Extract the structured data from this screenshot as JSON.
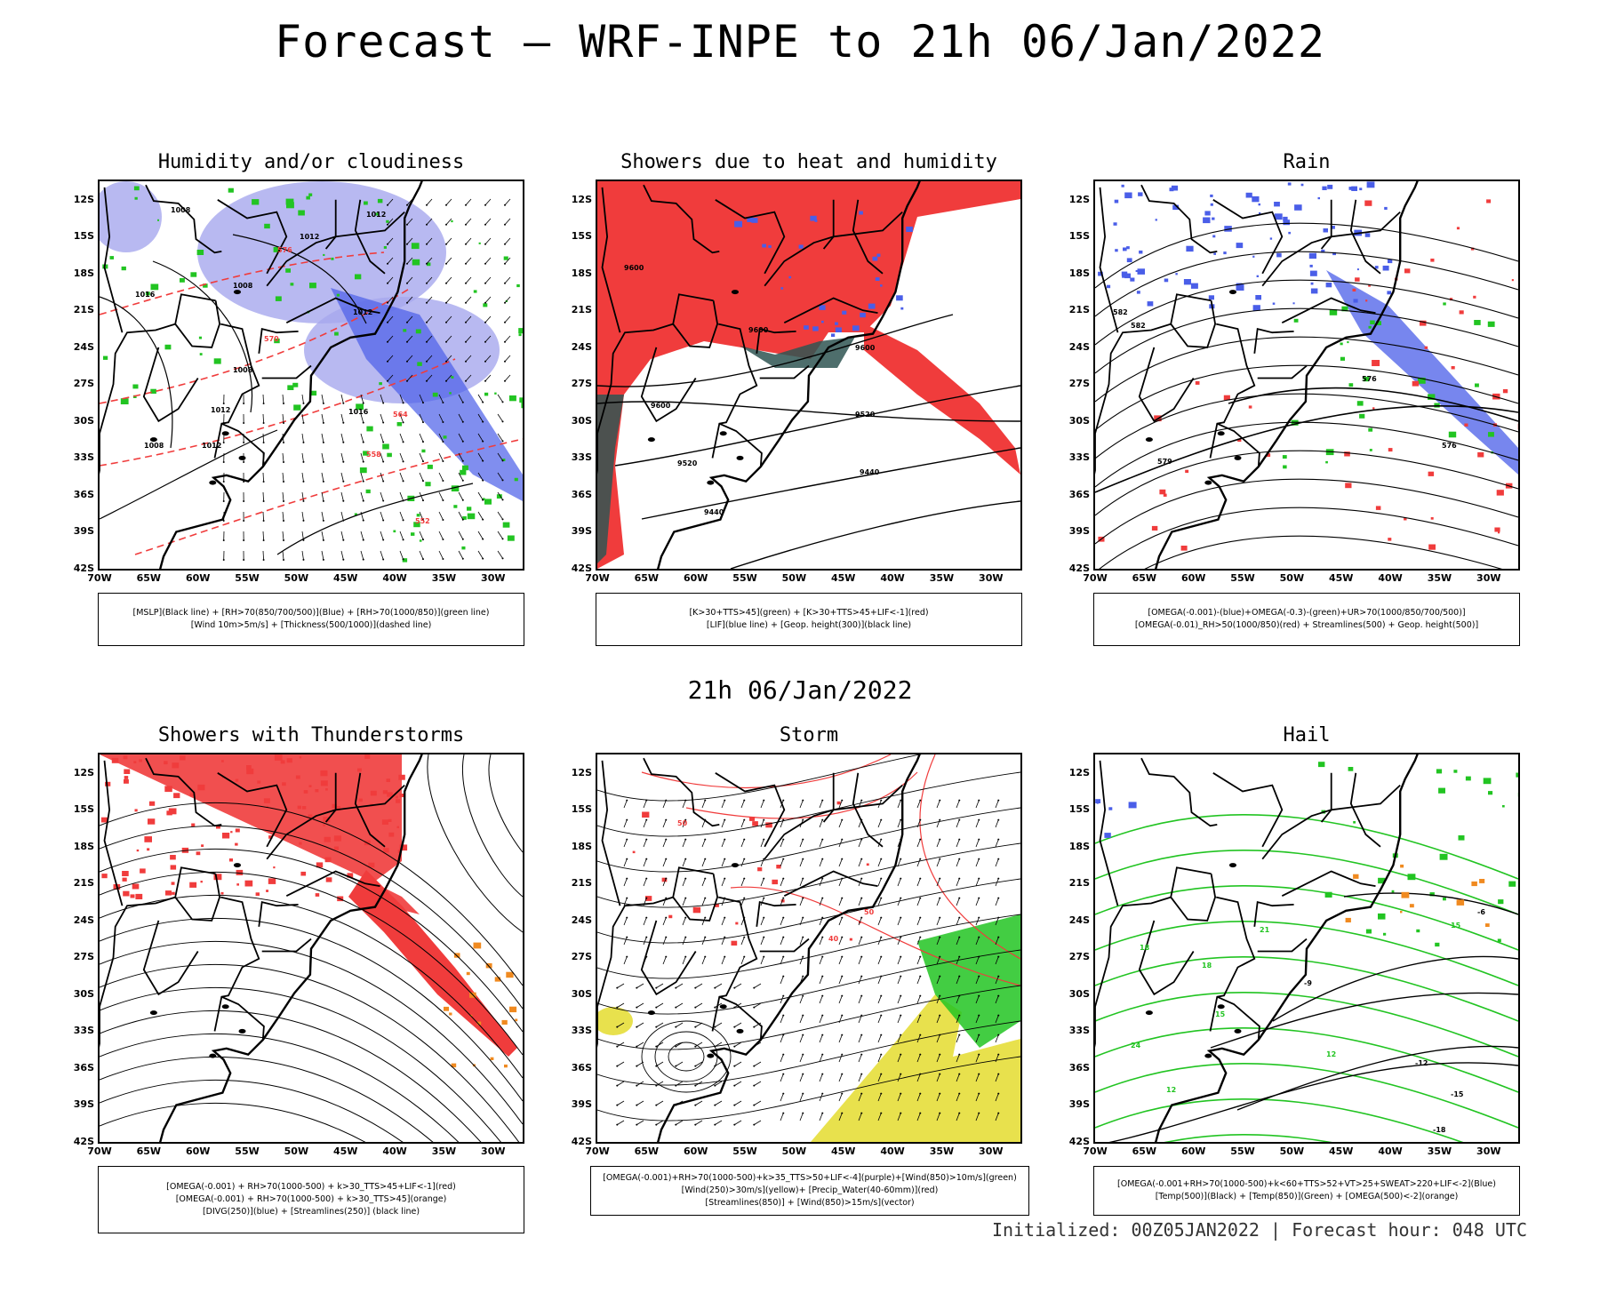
{
  "title": "Forecast — WRF-INPE to 21h 06/Jan/2022",
  "subtitle": "21h 06/Jan/2022",
  "footer": "Initialized: 00Z05JAN2022 | Forecast hour: 048 UTC",
  "axes": {
    "lat": [
      "12S",
      "15S",
      "18S",
      "21S",
      "24S",
      "27S",
      "30S",
      "33S",
      "36S",
      "39S",
      "42S"
    ],
    "lon": [
      "70W",
      "65W",
      "60W",
      "55W",
      "50W",
      "45W",
      "40W",
      "35W",
      "30W"
    ]
  },
  "colors": {
    "blue": "#4a5ee8",
    "lavender": "#a6a8ee",
    "green": "#22c422",
    "red": "#f03c3c",
    "darkteal": "#2f5552",
    "orange": "#f08a20",
    "yellow": "#e6de3a",
    "black": "#000000"
  },
  "panels": [
    {
      "title": "Humidity and/or cloudiness",
      "legend": [
        "[MSLP](Black line) + [RH>70(850/700/500)](Blue) + [RH>70(1000/850)](green line)",
        "[Wind 10m>5m/s] + [Thickness(500/1000)](dashed line)"
      ],
      "contour_labels": [
        "1008",
        "1008",
        "1012",
        "1012",
        "1012",
        "1016",
        "1008",
        "1008",
        "1012",
        "1012",
        "1016",
        "576",
        "570",
        "564",
        "558",
        "552"
      ]
    },
    {
      "title": "Showers due to heat and humidity",
      "legend": [
        "[K>30+TTS>45](green) + [K>30+TTS>45+LIF<-1](red)",
        "[LIF](blue line) + [Geop. height(300)](black line)"
      ],
      "contour_labels": [
        "9600",
        "9600",
        "9600",
        "9520",
        "9520",
        "9440",
        "9440",
        "9600"
      ]
    },
    {
      "title": "Rain",
      "legend": [
        "[OMEGA(-0.001)-(blue)+OMEGA(-0.3)-(green)+UR>70(1000/850/700/500)]",
        "[OMEGA(-0.01)_RH>50(1000/850)(red) + Streamlines(500) + Geop. height(500)]"
      ],
      "contour_labels": [
        "582",
        "582",
        "576",
        "576",
        "579"
      ]
    },
    {
      "title": "Showers with Thunderstorms",
      "legend": [
        "[OMEGA(-0.001) + RH>70(1000-500) + k>30_TTS>45+LIF<-1](red)",
        "[OMEGA(-0.001) + RH>70(1000-500) + k>30_TTS>45](orange)",
        "[DIVG(250)](blue) + [Streamlines(250)] (black line)"
      ],
      "contour_labels": []
    },
    {
      "title": "Storm",
      "legend": [
        "[OMEGA(-0.001)+RH>70(1000-500)+k>35_TTS>50+LIF<-4](purple)+[Wind(850)>10m/s](green)",
        "[Wind(250)>30m/s](yellow)+ [Precip_Water(40-60mm)](red)",
        "[Streamlines(850)] + [Wind(850)>15m/s](vector)"
      ],
      "contour_labels": [
        "50",
        "40",
        "50"
      ]
    },
    {
      "title": "Hail",
      "legend": [
        "[OMEGA(-0.001+RH>70(1000-500)+k<60+TTS>52+VT>25+SWEAT>220+LIF<-2](Blue)",
        "[Temp(500)](Black) + [Temp(850)](Green) + [OMEGA(500)<-2](orange)"
      ],
      "contour_labels": [
        "-6",
        "-9",
        "-12",
        "-15",
        "-18",
        "21",
        "18",
        "15",
        "12",
        "24",
        "15",
        "18",
        "12"
      ]
    }
  ]
}
